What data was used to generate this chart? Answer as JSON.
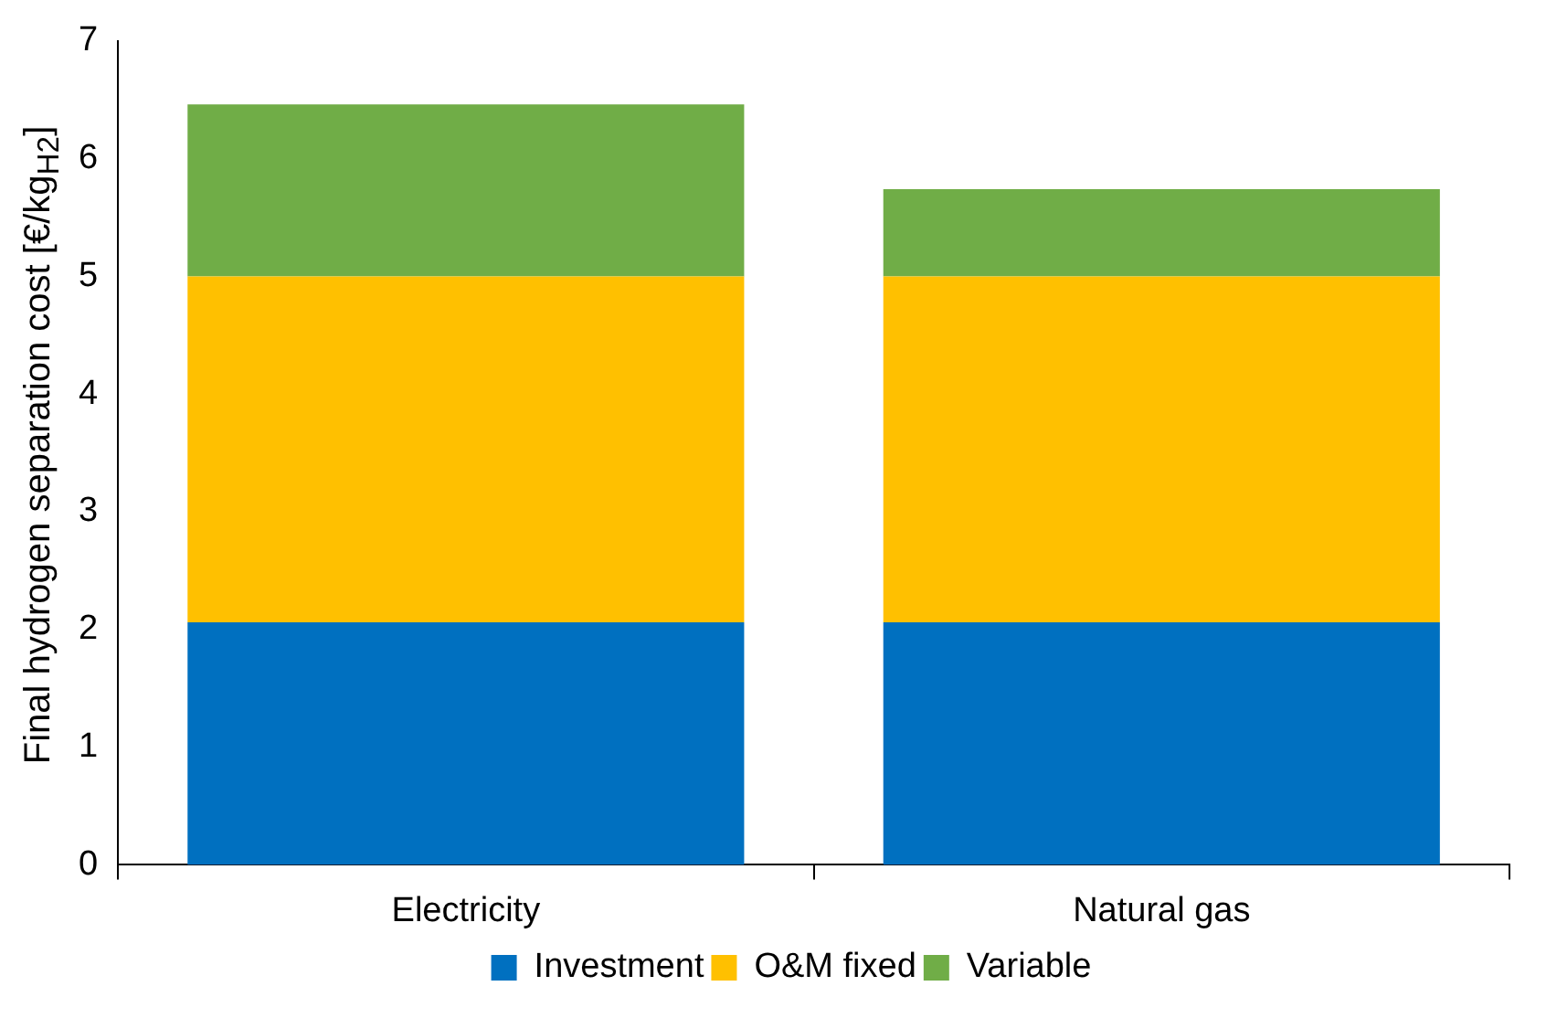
{
  "chart_data": {
    "type": "bar",
    "stacked": true,
    "ylabel": "Final hydrogen separation cost [€/kg$_{H2}$]",
    "categories": [
      "Electricity",
      "Natural gas"
    ],
    "series": [
      {
        "name": "Investment",
        "color": "#0070c0",
        "values": [
          2.06,
          2.06
        ]
      },
      {
        "name": "O&M fixed",
        "color": "#ffc000",
        "values": [
          2.94,
          2.94
        ]
      },
      {
        "name": "Variable",
        "color": "#70ad47",
        "values": [
          1.46,
          0.74
        ]
      }
    ],
    "ylim": [
      0,
      7
    ],
    "yticks": [
      0,
      1,
      2,
      3,
      4,
      5,
      6,
      7
    ],
    "grid": false,
    "legend": "bottom"
  }
}
